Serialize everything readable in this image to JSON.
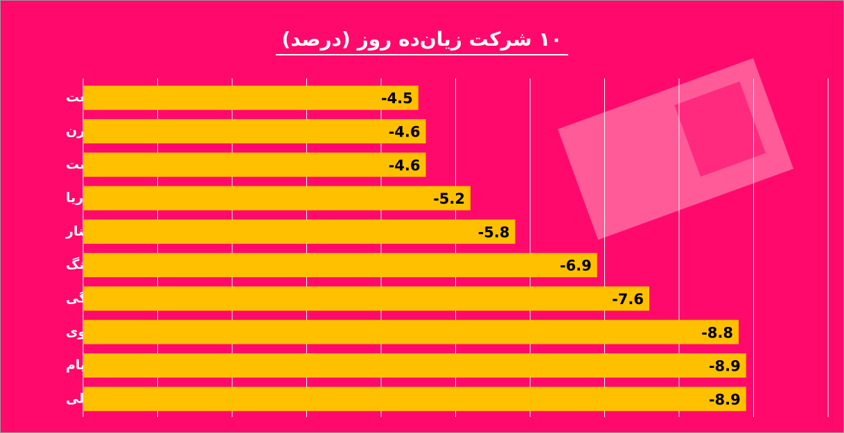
{
  "chart_data": {
    "type": "bar",
    "orientation": "horizontal",
    "title": "۱۰ شرکت زیان‌ده روز (درصد)",
    "categories": [
      "وصنعت",
      "چکارن",
      "غدشت",
      "حاریا",
      "تکنار",
      "شزنگ",
      "شرنگی",
      "دحاوی",
      "لپیام",
      "شتولی"
    ],
    "values": [
      -4.5,
      -4.6,
      -4.6,
      -5.2,
      -5.8,
      -6.9,
      -7.6,
      -8.8,
      -8.9,
      -8.9
    ],
    "color": "#FFC000",
    "xlim": [
      0,
      -10
    ],
    "xticks": [
      0,
      -1,
      -2,
      -3,
      -4,
      -5,
      -6,
      -7,
      -8,
      -9,
      -10
    ],
    "grid": true
  }
}
